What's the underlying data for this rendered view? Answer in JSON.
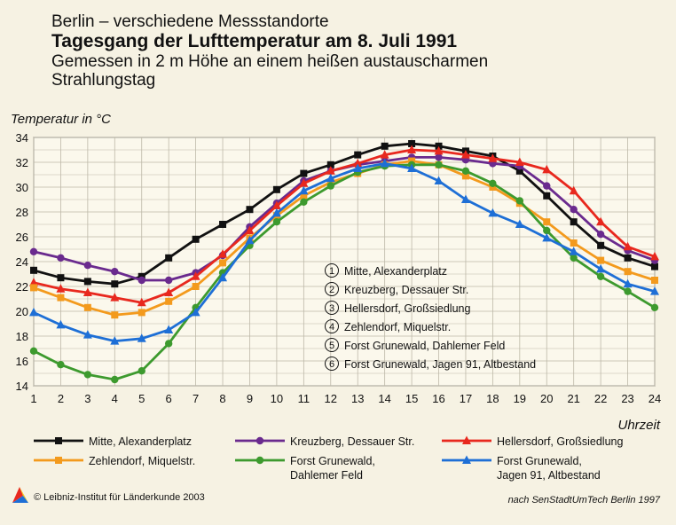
{
  "header": {
    "line1": "Berlin – verschiedene Messstandorte",
    "line2": "Tagesgang der Lufttemperatur am 8. Juli 1991",
    "line3": "Gemessen in 2 m Höhe an einem heißen austauscharmen",
    "line4": "Strahlungstag"
  },
  "footer": {
    "copyright": "© Leibniz-Institut für Länderkunde 2003",
    "source": "nach SenStadtUmTech Berlin 1997"
  },
  "chart_data": {
    "type": "line",
    "ylabel": "Temperatur in °C",
    "xlabel": "Uhrzeit",
    "xlim": [
      1,
      24
    ],
    "ylim": [
      14,
      34
    ],
    "x": [
      1,
      2,
      3,
      4,
      5,
      6,
      7,
      8,
      9,
      10,
      11,
      12,
      13,
      14,
      15,
      16,
      17,
      18,
      19,
      20,
      21,
      22,
      23,
      24
    ],
    "xticks": [
      "1",
      "2",
      "3",
      "4",
      "5",
      "6",
      "7",
      "8",
      "9",
      "10",
      "11",
      "12",
      "13",
      "14",
      "15",
      "16",
      "17",
      "18",
      "19",
      "20",
      "21",
      "22",
      "23",
      "24"
    ],
    "yticks": [
      "14",
      "16",
      "18",
      "20",
      "22",
      "24",
      "26",
      "28",
      "30",
      "32",
      "34"
    ],
    "grid": true,
    "legend_position": "bottom",
    "inset_list": [
      {
        "num": "1",
        "label": "Mitte, Alexanderplatz"
      },
      {
        "num": "2",
        "label": "Kreuzberg, Dessauer Str."
      },
      {
        "num": "3",
        "label": "Hellersdorf, Großsiedlung"
      },
      {
        "num": "4",
        "label": "Zehlendorf, Miquelstr."
      },
      {
        "num": "5",
        "label": "Forst Grunewald, Dahlemer Feld"
      },
      {
        "num": "6",
        "label": "Forst Grunewald, Jagen 91, Altbestand"
      }
    ],
    "series": [
      {
        "name": "Mitte, Alexanderplatz",
        "legend": [
          "Mitte, Alexanderplatz"
        ],
        "color": "#111111",
        "marker": "square",
        "values": [
          23.3,
          22.7,
          22.4,
          22.2,
          22.8,
          24.3,
          25.8,
          27.0,
          28.2,
          29.8,
          31.1,
          31.8,
          32.6,
          33.3,
          33.5,
          33.3,
          32.9,
          32.5,
          31.3,
          29.3,
          27.2,
          25.3,
          24.3,
          23.6
        ]
      },
      {
        "name": "Kreuzberg, Dessauer Str.",
        "legend": [
          "Kreuzberg, Dessauer Str."
        ],
        "color": "#6a2a8e",
        "marker": "circle",
        "values": [
          24.8,
          24.3,
          23.7,
          23.2,
          22.5,
          22.5,
          23.1,
          24.5,
          26.8,
          28.7,
          30.5,
          31.3,
          31.8,
          32.1,
          32.4,
          32.4,
          32.2,
          31.9,
          31.7,
          30.1,
          28.2,
          26.2,
          24.9,
          24.1
        ]
      },
      {
        "name": "Hellersdorf, Großsiedlung",
        "legend": [
          "Hellersdorf, Großsiedlung"
        ],
        "color": "#e8281e",
        "marker": "triangle",
        "values": [
          22.3,
          21.8,
          21.5,
          21.1,
          20.7,
          21.5,
          22.8,
          24.6,
          26.5,
          28.5,
          30.3,
          31.3,
          31.9,
          32.6,
          33.0,
          32.9,
          32.6,
          32.3,
          32.0,
          31.4,
          29.7,
          27.2,
          25.2,
          24.4
        ]
      },
      {
        "name": "Zehlendorf, Miquelstr.",
        "legend": [
          "Zehlendorf, Miquelstr."
        ],
        "color": "#f39a1d",
        "marker": "square",
        "values": [
          21.9,
          21.1,
          20.3,
          19.7,
          19.9,
          20.8,
          22.0,
          23.9,
          25.9,
          27.7,
          29.3,
          30.4,
          31.1,
          31.8,
          32.1,
          31.8,
          30.9,
          30.0,
          28.7,
          27.2,
          25.5,
          24.1,
          23.2,
          22.5
        ]
      },
      {
        "name": "Forst Grunewald, Dahlemer Feld",
        "legend": [
          "Forst Grunewald,",
          "Dahlemer Feld"
        ],
        "color": "#3d9a2e",
        "marker": "circle",
        "values": [
          16.8,
          15.7,
          14.9,
          14.5,
          15.2,
          17.4,
          20.3,
          23.1,
          25.3,
          27.2,
          28.8,
          30.1,
          31.2,
          31.7,
          31.8,
          31.8,
          31.3,
          30.3,
          28.9,
          26.5,
          24.3,
          22.8,
          21.6,
          20.3
        ]
      },
      {
        "name": "Forst Grunewald, Jagen 91, Altbestand",
        "legend": [
          "Forst Grunewald,",
          "Jagen 91, Altbestand"
        ],
        "color": "#1e6fd6",
        "marker": "triangle",
        "values": [
          19.9,
          18.9,
          18.1,
          17.6,
          17.8,
          18.5,
          19.9,
          22.7,
          25.7,
          27.9,
          29.7,
          30.7,
          31.5,
          31.9,
          31.5,
          30.5,
          29.0,
          27.9,
          27.0,
          25.9,
          24.8,
          23.4,
          22.2,
          21.6
        ]
      }
    ]
  }
}
